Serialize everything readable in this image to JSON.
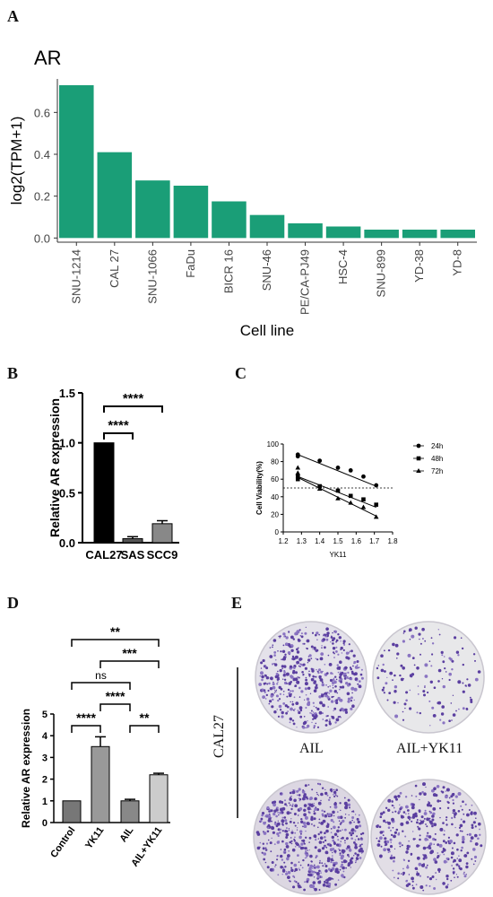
{
  "panels": {
    "a": "A",
    "b": "B",
    "c": "C",
    "d": "D",
    "e": "E"
  },
  "chart_data": [
    {
      "panel": "A",
      "type": "bar",
      "title": "AR",
      "xlabel": "Cell line",
      "ylabel": "log2(TPM+1)",
      "categories": [
        "SNU-1214",
        "CAL 27",
        "SNU-1066",
        "FaDu",
        "BICR 16",
        "SNU-46",
        "PE/CA-PJ49",
        "HSC-4",
        "SNU-899",
        "YD-38",
        "YD-8"
      ],
      "values": [
        0.73,
        0.41,
        0.275,
        0.25,
        0.175,
        0.11,
        0.07,
        0.055,
        0.04,
        0.04,
        0.04
      ],
      "ylim": [
        -0.02,
        0.76
      ],
      "yticks": [
        0.0,
        0.2,
        0.4,
        0.6
      ],
      "ytick_labels": [
        "0.0",
        "0.2",
        "0.4",
        "0.6"
      ],
      "color": "#1a9e77"
    },
    {
      "panel": "B",
      "type": "bar",
      "ylabel": "Relative AR expression",
      "categories": [
        "CAL27",
        "SAS",
        "SCC9"
      ],
      "values": [
        1.0,
        0.04,
        0.19
      ],
      "errors": [
        0,
        0.02,
        0.03
      ],
      "colors": [
        "#000000",
        "#555555",
        "#888888"
      ],
      "ylim": [
        0,
        1.5
      ],
      "yticks": [
        0.0,
        0.5,
        1.0,
        1.5
      ],
      "ytick_labels": [
        "0.0",
        "0.5",
        "1.0",
        "1.5"
      ],
      "significance": [
        {
          "from": "CAL27",
          "to": "SAS",
          "label": "****"
        },
        {
          "from": "CAL27",
          "to": "SCC9",
          "label": "****"
        }
      ]
    },
    {
      "panel": "C",
      "type": "scatter",
      "xlabel": "YK11",
      "ylabel": "Cell Viability(%)",
      "xlim": [
        1.2,
        1.8
      ],
      "ylim": [
        0,
        100
      ],
      "xticks": [
        1.2,
        1.3,
        1.4,
        1.5,
        1.6,
        1.7,
        1.8
      ],
      "xtick_labels": [
        "1.2",
        "1.3",
        "1.4",
        "1.5",
        "1.6",
        "1.7",
        "1.8"
      ],
      "yticks": [
        0,
        20,
        40,
        60,
        80,
        100
      ],
      "ytick_labels": [
        "0",
        "20",
        "40",
        "60",
        "80",
        "100"
      ],
      "reference_line_y": 50,
      "series": [
        {
          "name": "24h",
          "marker": "circle",
          "x": [
            1.28,
            1.28,
            1.4,
            1.5,
            1.57,
            1.64,
            1.71
          ],
          "y": [
            88,
            86,
            81,
            73,
            70,
            63,
            53
          ],
          "fit": [
            [
              1.28,
              88
            ],
            [
              1.71,
              52
            ]
          ]
        },
        {
          "name": "48h",
          "marker": "square",
          "x": [
            1.28,
            1.28,
            1.4,
            1.5,
            1.57,
            1.64,
            1.71
          ],
          "y": [
            63,
            60,
            52,
            47,
            41,
            37,
            31
          ],
          "fit": [
            [
              1.28,
              63
            ],
            [
              1.71,
              28
            ]
          ]
        },
        {
          "name": "72h",
          "marker": "triangle",
          "x": [
            1.28,
            1.28,
            1.4,
            1.5,
            1.57,
            1.64,
            1.71
          ],
          "y": [
            73,
            67,
            49,
            38,
            33,
            28,
            17
          ],
          "fit": [
            [
              1.28,
              62
            ],
            [
              1.71,
              18
            ]
          ]
        }
      ]
    },
    {
      "panel": "D",
      "type": "bar",
      "ylabel": "Relative AR expression",
      "categories": [
        "Control",
        "YK11",
        "AIL",
        "AIL+YK11"
      ],
      "values": [
        1.0,
        3.5,
        1.0,
        2.2
      ],
      "errors": [
        0,
        0.45,
        0.07,
        0.07
      ],
      "colors": [
        "#777777",
        "#999999",
        "#888888",
        "#cccccc"
      ],
      "ylim": [
        0,
        5
      ],
      "yticks": [
        0,
        1,
        2,
        3,
        4,
        5
      ],
      "ytick_labels": [
        "0",
        "1",
        "2",
        "3",
        "4",
        "5"
      ],
      "significance": [
        {
          "from": "Control",
          "to": "YK11",
          "label": "****"
        },
        {
          "from": "AIL",
          "to": "AIL+YK11",
          "label": "**"
        },
        {
          "from": "YK11",
          "to": "AIL",
          "label": "****"
        },
        {
          "from": "Control",
          "to": "AIL",
          "label": "ns"
        },
        {
          "from": "YK11",
          "to": "AIL+YK11",
          "label": "***"
        },
        {
          "from": "Control",
          "to": "AIL+YK11",
          "label": "**"
        }
      ]
    }
  ],
  "panel_e": {
    "row_label": "CAL27",
    "plates": [
      {
        "label": ""
      },
      {
        "label": ""
      },
      {
        "label": "AIL"
      },
      {
        "label": "AIL+YK11"
      }
    ]
  }
}
